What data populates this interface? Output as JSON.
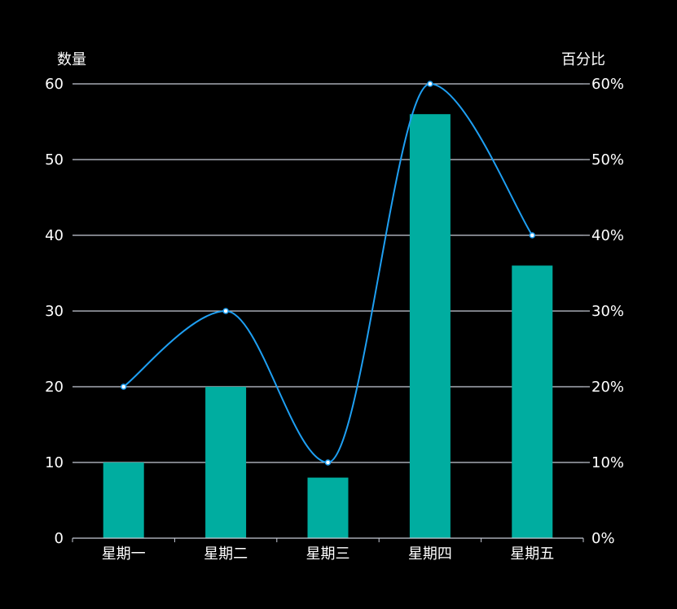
{
  "chart_data": {
    "type": "bar",
    "categories": [
      "星期一",
      "星期二",
      "星期三",
      "星期四",
      "星期五"
    ],
    "series": [
      {
        "type": "bar",
        "axis": "left",
        "values": [
          10,
          20,
          8,
          56,
          36
        ]
      },
      {
        "type": "line",
        "axis": "right",
        "smooth": true,
        "values": [
          20,
          30,
          10,
          60,
          40
        ]
      }
    ],
    "y_left": {
      "label": "数量",
      "ylim": [
        0,
        60
      ],
      "ticks": [
        0,
        10,
        20,
        30,
        40,
        50,
        60
      ]
    },
    "y_right": {
      "label": "百分比",
      "ylim": [
        0,
        60
      ],
      "ticks": [
        "0%",
        "10%",
        "20%",
        "30%",
        "40%",
        "50%",
        "60%"
      ]
    },
    "grid": true,
    "colors": {
      "bar": "#00ADA0",
      "line": "#1E9FF2",
      "grid": "#C7CBD6",
      "text": "#FFFFFF",
      "background": "#000000"
    }
  }
}
